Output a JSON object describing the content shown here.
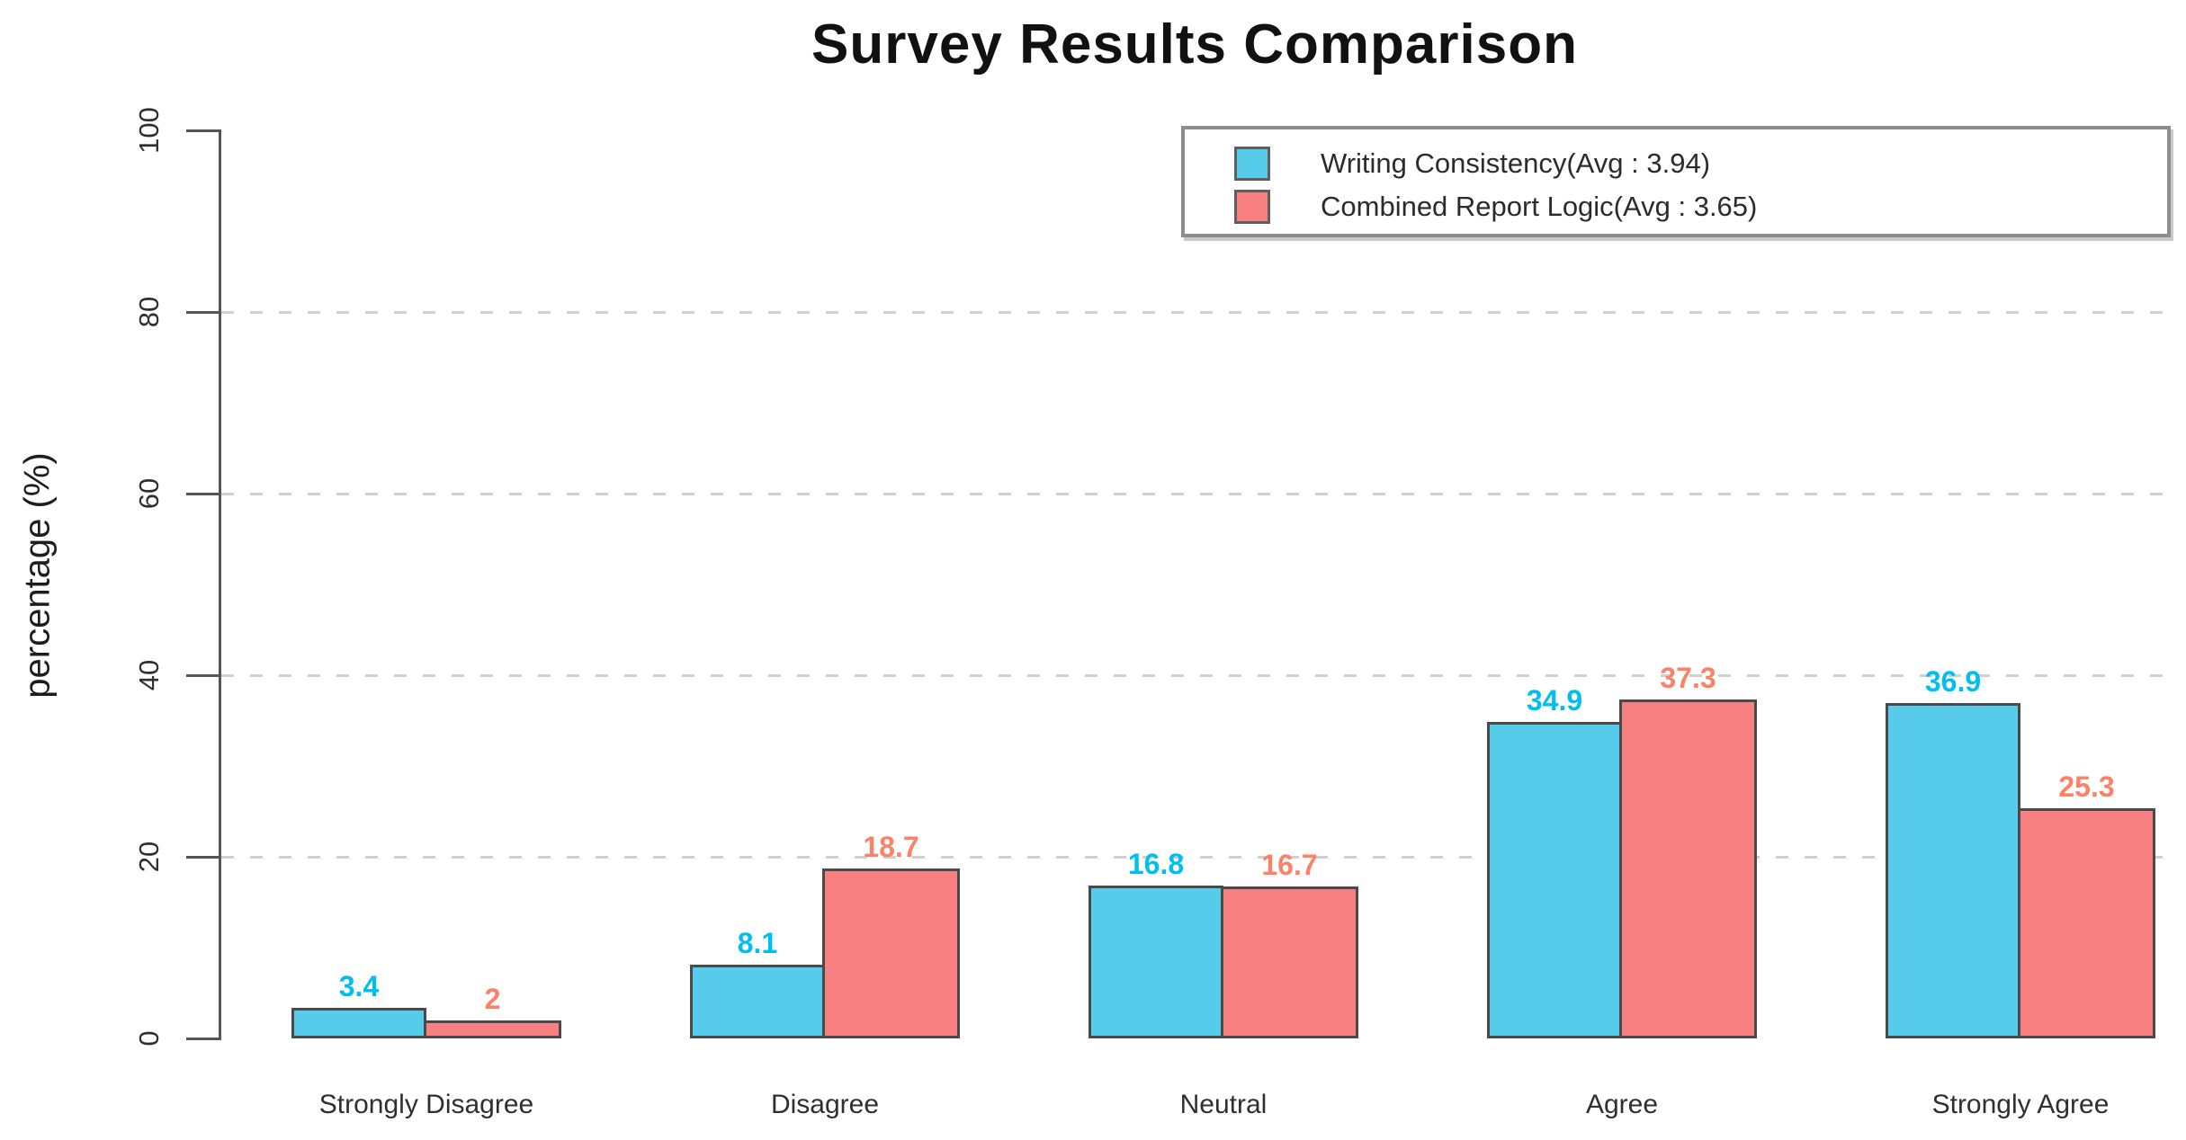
{
  "chart_data": {
    "type": "bar",
    "title": "Survey Results Comparison",
    "ylabel": "percentage (%)",
    "xlabel": "",
    "categories": [
      "Strongly Disagree",
      "Disagree",
      "Neutral",
      "Agree",
      "Strongly Agree"
    ],
    "series": [
      {
        "name": "Writing Consistency(Avg : 3.94)",
        "color": "#57cbea",
        "label_color": "#00bff0",
        "values": [
          3.4,
          8.1,
          16.8,
          34.9,
          36.9
        ],
        "value_labels": [
          "3.4",
          "8.1",
          "16.8",
          "34.9",
          "36.9"
        ]
      },
      {
        "name": "Combined Report Logic(Avg : 3.65)",
        "color": "#f98080",
        "label_color": "#fb8168",
        "values": [
          2,
          18.7,
          16.7,
          37.3,
          25.3
        ],
        "value_labels": [
          "2",
          "18.7",
          "16.7",
          "37.3",
          "25.3"
        ]
      }
    ],
    "ylim": [
      0,
      100
    ],
    "y_ticks": [
      0,
      20,
      40,
      60,
      80,
      100
    ],
    "gridlines_at": [
      20,
      40,
      60,
      80
    ],
    "grid_on": true,
    "grid_style": "dashed",
    "legend_position": "top-right",
    "bar_border_color": "#4a4a4a",
    "axis_color": "#555555",
    "gridline_color": "#d0d0d0",
    "text_color": "#2f2f2f"
  }
}
